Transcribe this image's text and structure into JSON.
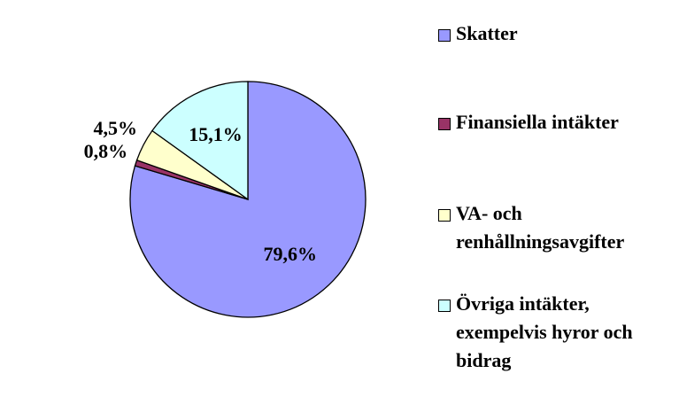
{
  "chart_data": {
    "type": "pie",
    "categories": [
      "Skatter",
      "Finansiella intäkter",
      "VA- och renhållningsavgifter",
      "Övriga intäkter, exempelvis hyror och bidrag"
    ],
    "values": [
      79.6,
      0.8,
      4.5,
      15.1
    ],
    "value_labels": [
      "79,6%",
      "0,8%",
      "4,5%",
      "15,1%"
    ],
    "colors": [
      "#9999ff",
      "#993366",
      "#ffffcc",
      "#ccffff"
    ],
    "legend": "right"
  }
}
